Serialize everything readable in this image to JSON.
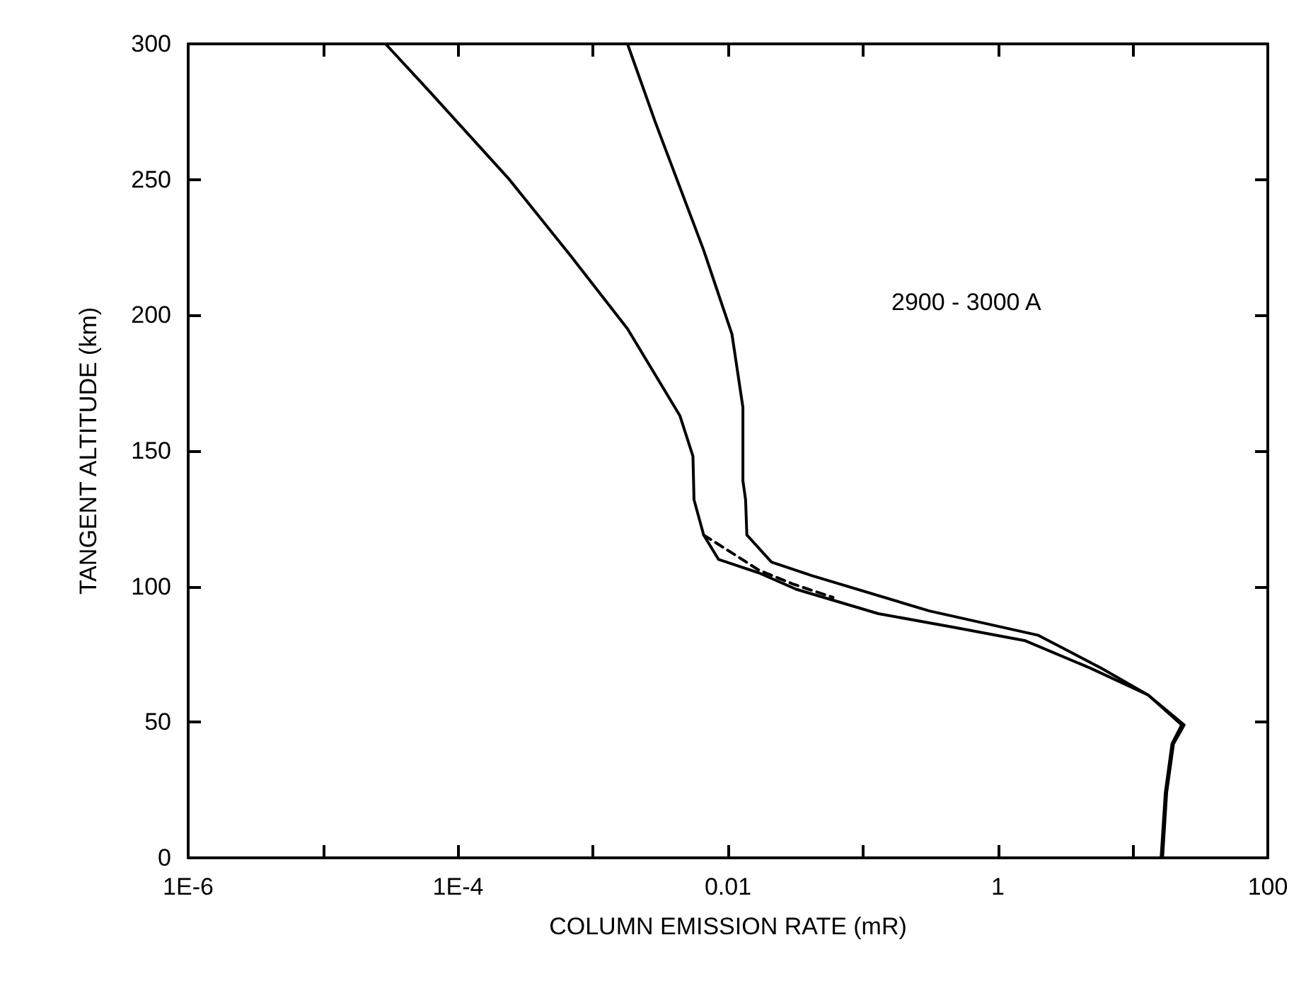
{
  "chart_data": {
    "type": "line",
    "xlabel": "COLUMN EMISSION RATE (mR)",
    "ylabel": "TANGENT ALTITUDE (km)",
    "log": "x",
    "grid": false,
    "marker": "none",
    "annotations": [
      "2900 - 3000 A"
    ],
    "xlim": [
      1e-06,
      100
    ],
    "ylim": [
      0,
      300
    ],
    "xticks": [
      {
        "value": 1e-06,
        "label": "1E-6"
      },
      {
        "value": 1e-05,
        "label": null
      },
      {
        "value": 0.0001,
        "label": "1E-4"
      },
      {
        "value": 0.001,
        "label": null
      },
      {
        "value": 0.01,
        "label": "0.01"
      },
      {
        "value": 0.1,
        "label": null
      },
      {
        "value": 1,
        "label": "1"
      },
      {
        "value": 10,
        "label": null
      },
      {
        "value": 100,
        "label": "100"
      }
    ],
    "yticks": [
      0,
      50,
      100,
      150,
      200,
      250,
      300
    ],
    "series": [
      {
        "color": "#000000",
        "line_style": "solid",
        "x": [
          2.9e-05,
          6e-05,
          0.00024,
          0.00068,
          0.0018,
          0.0044,
          0.0055,
          0.0056,
          0.0066,
          0.0085,
          0.017,
          0.032,
          0.13,
          0.47,
          1.6,
          4.8,
          13,
          23,
          19.5,
          17.4,
          16.2
        ],
        "values": [
          300,
          283,
          250,
          222,
          195,
          163,
          148,
          132,
          119,
          110,
          105,
          99,
          90,
          85,
          80,
          70,
          60,
          49,
          42,
          24,
          0
        ]
      },
      {
        "color": "#000000",
        "line_style": "solid",
        "x": [
          0.0018,
          0.0029,
          0.0066,
          0.0107,
          0.0129,
          0.0129,
          0.0135,
          0.0138,
          0.021,
          0.042,
          0.31,
          2.0,
          5.8,
          13,
          24,
          20,
          17.8,
          16.6
        ],
        "values": [
          300,
          271,
          224,
          193,
          166,
          139,
          132,
          119,
          109,
          104,
          91,
          82,
          70,
          60,
          49,
          42,
          24,
          0
        ]
      },
      {
        "color": "#000000",
        "line_style": "dashed",
        "x": [
          0.0066,
          0.011,
          0.017,
          0.03,
          0.06
        ],
        "values": [
          119,
          112,
          106,
          101,
          96
        ]
      }
    ]
  }
}
